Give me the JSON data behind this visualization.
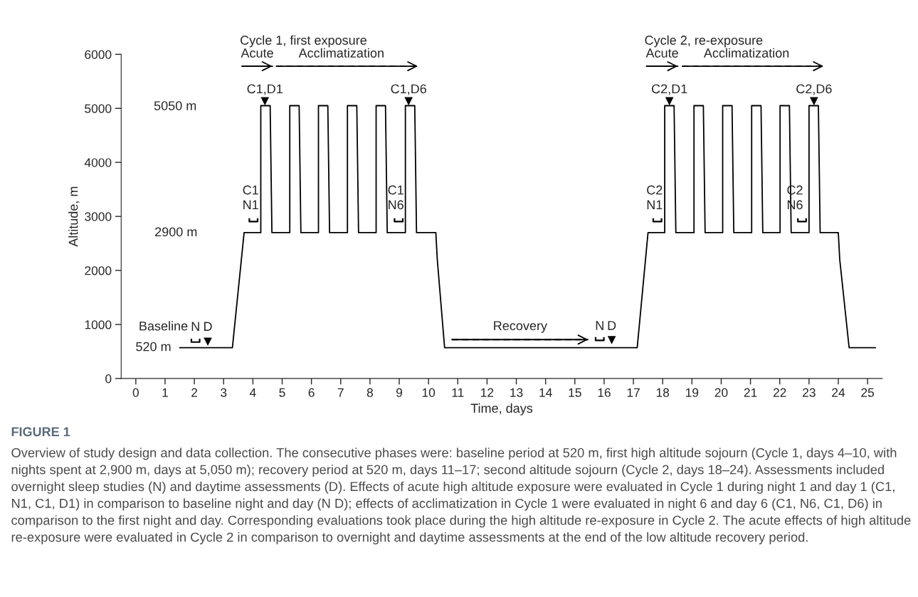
{
  "chart_data": {
    "type": "line",
    "xlabel": "Time, days",
    "ylabel": "Altitude, m",
    "xlim": [
      -0.5,
      25.5
    ],
    "ylim": [
      0,
      6000
    ],
    "xticks": [
      0,
      1,
      2,
      3,
      4,
      5,
      6,
      7,
      8,
      9,
      10,
      11,
      12,
      13,
      14,
      15,
      16,
      17,
      18,
      19,
      20,
      21,
      22,
      23,
      24,
      25
    ],
    "yticks": [
      0,
      1000,
      2000,
      3000,
      4000,
      5000,
      6000
    ],
    "grid": false,
    "legend": false,
    "series": [
      {
        "color": "#000000",
        "marker": "none",
        "line_style": "solid",
        "x": [
          1.5,
          3.3,
          3.7,
          4.27,
          4.27,
          4.59,
          4.65,
          5.26,
          5.26,
          5.58,
          5.64,
          6.24,
          6.24,
          6.56,
          6.62,
          7.23,
          7.23,
          7.55,
          7.61,
          8.21,
          8.21,
          8.53,
          8.59,
          9.21,
          9.21,
          9.53,
          9.59,
          10.25,
          10.3,
          10.55,
          17.13,
          17.5,
          18.07,
          18.07,
          18.39,
          18.45,
          19.07,
          19.07,
          19.39,
          19.45,
          20.05,
          20.05,
          20.37,
          20.43,
          21.04,
          21.04,
          21.36,
          21.42,
          22.01,
          22.01,
          22.33,
          22.39,
          23.0,
          23.0,
          23.32,
          23.38,
          24.0,
          24.05,
          24.37,
          25.27
        ],
        "values": [
          570,
          570,
          2700,
          2700,
          5050,
          5050,
          2700,
          2700,
          5050,
          5050,
          2700,
          2700,
          5050,
          5050,
          2700,
          2700,
          5050,
          5050,
          2700,
          2700,
          5050,
          5050,
          2700,
          2700,
          5050,
          5050,
          2700,
          2700,
          2200,
          570,
          570,
          2700,
          2700,
          5050,
          5050,
          2700,
          2700,
          5050,
          5050,
          2700,
          2700,
          5050,
          5050,
          2700,
          2700,
          5050,
          5050,
          2700,
          2700,
          5050,
          5050,
          2700,
          2700,
          5050,
          5050,
          2700,
          2700,
          2200,
          570,
          570
        ]
      },
      {
        "type": "line",
        "color": "#000000",
        "marker": "none",
        "line_style": "solid",
        "x": [
          3.63,
          4.67
        ],
        "values": [
          5780,
          5780
        ]
      },
      {
        "type": "line",
        "color": "#000000",
        "marker": "none",
        "line_style": "dashed",
        "x": [
          4.8,
          9.64
        ],
        "values": [
          5780,
          5780
        ]
      },
      {
        "type": "line",
        "color": "#000000",
        "marker": "none",
        "line_style": "solid",
        "x": [
          17.45,
          18.52
        ],
        "values": [
          5780,
          5780
        ]
      },
      {
        "type": "line",
        "color": "#000000",
        "marker": "none",
        "line_style": "dashed",
        "x": [
          18.67,
          23.5
        ],
        "values": [
          5780,
          5780
        ]
      },
      {
        "type": "line",
        "color": "#000000",
        "marker": "none",
        "line_style": "dashed",
        "x": [
          10.8,
          15.46
        ],
        "values": [
          720,
          720
        ]
      },
      {
        "type": "scatter",
        "color": "#000000",
        "marker": "triangle",
        "x": [
          2.46,
          4.41,
          9.32,
          16.26,
          18.23,
          23.17
        ],
        "values": [
          680,
          5130,
          5130,
          710,
          5130,
          5130
        ]
      },
      {
        "type": "scatter",
        "color": "#000000",
        "x": [
          2.04,
          4.02,
          8.98,
          15.85,
          17.82,
          22.76
        ],
        "values": [
          720,
          2950,
          2950,
          750,
          2950,
          2950
        ]
      }
    ],
    "annotations": [
      {
        "text": "Cycle 1, first exposure",
        "x": 3.63,
        "y": 5780
      },
      {
        "text": "Cycle 2, re-exposure",
        "x": 17.45,
        "y": 5780
      },
      {
        "text": "Acute",
        "x": 4.15,
        "y": 5780
      },
      {
        "text": "Acclimatization",
        "x": 7.22,
        "y": 5780
      },
      {
        "text": "Acute",
        "x": 17.985,
        "y": 5780
      },
      {
        "text": "Acclimatization",
        "x": 21.085,
        "y": 5780
      },
      {
        "text": "C1,D1",
        "x": 4.41,
        "y": 5130
      },
      {
        "text": "C1,D6",
        "x": 9.32,
        "y": 5130
      },
      {
        "text": "C2,D1",
        "x": 18.23,
        "y": 5130
      },
      {
        "text": "C2,D6",
        "x": 23.17,
        "y": 5130
      },
      {
        "text": "C1\nN1",
        "x": 4.02,
        "y": 2950
      },
      {
        "text": "C1\nN6",
        "x": 8.98,
        "y": 2950
      },
      {
        "text": "C2\nN1",
        "x": 17.82,
        "y": 2950
      },
      {
        "text": "C2\nN6",
        "x": 22.76,
        "y": 2950
      },
      {
        "text": "520 m",
        "x": 1.5,
        "y": 570
      },
      {
        "text": "Baseline",
        "x": 1.5,
        "y": 570
      },
      {
        "text": "N",
        "x": 2.04,
        "y": 720
      },
      {
        "text": "D",
        "x": 2.46,
        "y": 680
      },
      {
        "text": "Recovery",
        "x": 13.13,
        "y": 720
      },
      {
        "text": "N",
        "x": 15.85,
        "y": 750
      },
      {
        "text": "D",
        "x": 16.26,
        "y": 710
      },
      "5050 m",
      "2900 m",
      "FIGURE 1",
      "Overview of study design and data collection. The consecutive phases were: baseline period at 520 m, first high altitude sojourn (Cycle 1, days 4–10, with nights spent at 2,900 m, days at 5,050 m); recovery period at 520 m, days 11–17; second altitude sojourn (Cycle 2, days 18–24). Assessments included overnight sleep studies (N) and daytime assessments (D). Effects of acute high altitude exposure were evaluated in Cycle 1 during night 1 and day 1 (C1, N1, C1, D1) in comparison to baseline night and day (N D); effects of acclimatization in Cycle 1 were evaluated in night 6 and day 6 (C1, N6, C1, D6) in comparison to the first night and day. Corresponding evaluations took place during the high altitude re-exposure in Cycle 2. The acute effects of high altitude re-exposure were evaluated in Cycle 2 in comparison to overnight and daytime assessments at the end of the low altitude recovery period."
    ]
  }
}
